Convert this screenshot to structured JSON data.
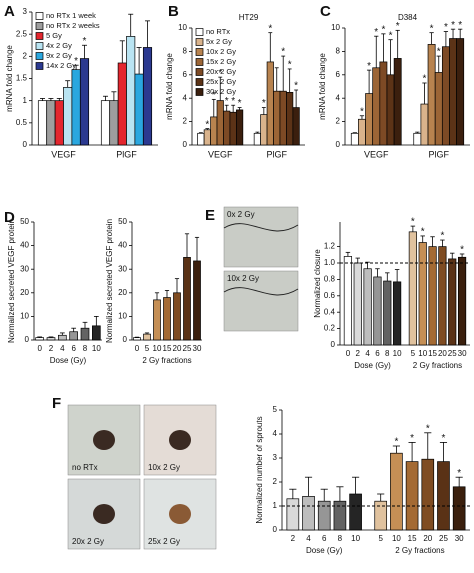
{
  "chart_data": [
    {
      "type": "bar",
      "panel": "A",
      "ylabel": "mRNA fold change",
      "ylim": [
        0,
        3
      ],
      "yticks": [
        0,
        0.5,
        1,
        1.5,
        2,
        2.5,
        3
      ],
      "grid": false,
      "legend": "top-left",
      "significance_mark": "*",
      "categories": [
        "VEGF",
        "PlGF"
      ],
      "series": [
        {
          "name": "no RTx 1 week",
          "color": "#ffffff",
          "values": [
            1.0,
            1.0
          ],
          "errors": [
            0.05,
            0.1
          ],
          "significant": [
            false,
            false
          ]
        },
        {
          "name": "no RTx 2 weeks",
          "color": "#9e9e9e",
          "values": [
            1.0,
            1.0
          ],
          "errors": [
            0.05,
            0.2
          ],
          "significant": [
            false,
            false
          ]
        },
        {
          "name": "5 Gy",
          "color": "#e3262e",
          "values": [
            1.0,
            1.85
          ],
          "errors": [
            0.05,
            0.5
          ],
          "significant": [
            false,
            false
          ]
        },
        {
          "name": "4x 2 Gy",
          "color": "#b9e4f2",
          "values": [
            1.3,
            2.45
          ],
          "errors": [
            0.15,
            0.5
          ],
          "significant": [
            false,
            false
          ]
        },
        {
          "name": "9x 2 Gy",
          "color": "#2aa7df",
          "values": [
            1.7,
            1.6
          ],
          "errors": [
            0.1,
            0.6
          ],
          "significant": [
            true,
            false
          ]
        },
        {
          "name": "14x 2 Gy",
          "color": "#2b3990",
          "values": [
            1.95,
            2.2
          ],
          "errors": [
            0.3,
            0.6
          ],
          "significant": [
            true,
            false
          ]
        }
      ]
    },
    {
      "type": "bar",
      "panel": "B",
      "title": "HT29",
      "ylabel": "mRNA fold change",
      "ylim": [
        0,
        10
      ],
      "yticks": [
        0,
        2,
        4,
        6,
        8,
        10
      ],
      "grid": false,
      "legend": "top-left",
      "significance_mark": "*",
      "categories": [
        "VEGF",
        "PlGF"
      ],
      "series": [
        {
          "name": "no RTx",
          "color": "#ffffff",
          "values": [
            1,
            1
          ],
          "errors": [
            0.05,
            0.1
          ],
          "significant": [
            false,
            false
          ]
        },
        {
          "name": "5x 2 Gy",
          "color": "#d9b38c",
          "values": [
            1.3,
            2.6
          ],
          "errors": [
            0.1,
            0.6
          ],
          "significant": [
            true,
            true
          ]
        },
        {
          "name": "10x 2 Gy",
          "color": "#b8834f",
          "values": [
            2.4,
            7.1
          ],
          "errors": [
            1.5,
            2.5
          ],
          "significant": [
            true,
            true
          ]
        },
        {
          "name": "15x 2 Gy",
          "color": "#9c6536",
          "values": [
            3.8,
            4.6
          ],
          "errors": [
            2,
            2
          ],
          "significant": [
            true,
            false
          ]
        },
        {
          "name": "20x 2 Gy",
          "color": "#7d4a25",
          "values": [
            2.9,
            4.6
          ],
          "errors": [
            0.5,
            3
          ],
          "significant": [
            true,
            true
          ]
        },
        {
          "name": "25x 2 Gy",
          "color": "#5c3317",
          "values": [
            2.8,
            4.5
          ],
          "errors": [
            0.6,
            2
          ],
          "significant": [
            true,
            true
          ]
        },
        {
          "name": "30x 2 Gy",
          "color": "#3b1f0e",
          "values": [
            3.0,
            3.2
          ],
          "errors": [
            0.2,
            1.5
          ],
          "significant": [
            true,
            true
          ]
        }
      ]
    },
    {
      "type": "bar",
      "panel": "C",
      "title": "D384",
      "ylabel": "mRNA fold change",
      "ylim": [
        0,
        10
      ],
      "yticks": [
        0,
        2,
        4,
        6,
        8,
        10
      ],
      "grid": false,
      "significance_mark": "*",
      "categories": [
        "VEGF",
        "PlGF"
      ],
      "series": [
        {
          "color": "#ffffff",
          "values": [
            1,
            1
          ],
          "errors": [
            0.05,
            0.1
          ],
          "significant": [
            false,
            false
          ]
        },
        {
          "color": "#d9b38c",
          "values": [
            2.2,
            3.5
          ],
          "errors": [
            0.3,
            1.8
          ],
          "significant": [
            true,
            true
          ]
        },
        {
          "color": "#b8834f",
          "values": [
            4.4,
            8.6
          ],
          "errors": [
            2,
            1
          ],
          "significant": [
            true,
            true
          ]
        },
        {
          "color": "#9c6536",
          "values": [
            6.6,
            6.2
          ],
          "errors": [
            2.7,
            1.4
          ],
          "significant": [
            true,
            true
          ]
        },
        {
          "color": "#7d4a25",
          "values": [
            7.1,
            8.4
          ],
          "errors": [
            2.4,
            1.3
          ],
          "significant": [
            true,
            true
          ]
        },
        {
          "color": "#5c3317",
          "values": [
            6.0,
            9.1
          ],
          "errors": [
            3,
            0.8
          ],
          "significant": [
            true,
            true
          ]
        },
        {
          "color": "#3b1f0e",
          "values": [
            7.4,
            9.1
          ],
          "errors": [
            2.4,
            0.8
          ],
          "significant": [
            true,
            true
          ]
        }
      ]
    },
    {
      "type": "bar",
      "panel": "D",
      "ylabel": "Normalized secreted VEGF protein",
      "xlabel": "Dose (Gy)",
      "ylim": [
        0,
        50
      ],
      "yticks": [
        0,
        10,
        20,
        30,
        40,
        50
      ],
      "grid": false,
      "categories": [
        "0",
        "2",
        "4",
        "6",
        "8",
        "10"
      ],
      "values": [
        1,
        1,
        2,
        3.5,
        5,
        6
      ],
      "errors": [
        0.3,
        0.3,
        1,
        1.5,
        2.5,
        4
      ],
      "colors": [
        "#ffffff",
        "#d9d9d9",
        "#bdbdbd",
        "#969696",
        "#636363",
        "#252525"
      ]
    },
    {
      "type": "bar",
      "ylabel": "Normalized secreted VEGF protein",
      "xlabel": "2 Gy fractions",
      "ylim": [
        0,
        50
      ],
      "yticks": [
        0,
        10,
        20,
        30,
        40,
        50
      ],
      "grid": false,
      "categories": [
        "0",
        "5",
        "10",
        "15",
        "20",
        "25",
        "30"
      ],
      "values": [
        1,
        2.5,
        17,
        18,
        20,
        35,
        33.5
      ],
      "errors": [
        0.2,
        0.5,
        3,
        3,
        6,
        10,
        10
      ],
      "colors": [
        "#ffffff",
        "#e0c29e",
        "#c58f55",
        "#a46a33",
        "#7f4c22",
        "#5a3216",
        "#3a1f0d"
      ]
    },
    {
      "type": "bar",
      "panel": "E",
      "ylabel": "Normalized closure",
      "ylim": [
        0,
        1.5
      ],
      "yticks": [
        0,
        0.2,
        0.4,
        0.6,
        0.8,
        {
          "value": 1,
          "label": "1.0"
        },
        1.2
      ],
      "grid": false,
      "reference_line": 1,
      "significance_mark": "*",
      "images": [
        "0x 2 Gy",
        "10x 2 Gy"
      ],
      "groups": [
        {
          "label": "Dose (Gy)",
          "categories": [
            "0",
            "2",
            "4",
            "6",
            "8",
            "10"
          ],
          "values": [
            1.08,
            1.0,
            0.93,
            0.83,
            0.78,
            0.77
          ],
          "errors": [
            0.05,
            0.06,
            0.08,
            0.1,
            0.1,
            0.15
          ],
          "colors": [
            "#ffffff",
            "#d9d9d9",
            "#bdbdbd",
            "#969696",
            "#636363",
            "#252525"
          ],
          "significant": [
            false,
            false,
            false,
            false,
            false,
            false
          ]
        },
        {
          "label": "2 Gy fractions",
          "categories": [
            "5",
            "10",
            "15",
            "20",
            "25",
            "30"
          ],
          "values": [
            1.38,
            1.25,
            1.2,
            1.2,
            1.05,
            1.07
          ],
          "errors": [
            0.07,
            0.08,
            0.12,
            0.08,
            0.07,
            0.04
          ],
          "colors": [
            "#e0c29e",
            "#c58f55",
            "#a46a33",
            "#7f4c22",
            "#5a3216",
            "#3a1f0d"
          ],
          "significant": [
            true,
            true,
            false,
            true,
            false,
            true
          ]
        }
      ]
    },
    {
      "type": "bar",
      "panel": "F",
      "ylabel": "Normalized number of sprouts",
      "ylim": [
        0,
        5
      ],
      "yticks": [
        0,
        1,
        2,
        3,
        4,
        5
      ],
      "grid": false,
      "reference_line": 1,
      "significance_mark": "*",
      "images": [
        "no RTx",
        "10x 2 Gy",
        "20x 2 Gy",
        "25x 2 Gy"
      ],
      "groups": [
        {
          "label": "Dose (Gy)",
          "categories": [
            "2",
            "4",
            "6",
            "8",
            "10"
          ],
          "values": [
            1.3,
            1.4,
            1.2,
            1.2,
            1.5
          ],
          "errors": [
            0.4,
            0.8,
            0.5,
            0.6,
            0.7
          ],
          "colors": [
            "#d9d9d9",
            "#bdbdbd",
            "#969696",
            "#636363",
            "#252525"
          ],
          "significant": [
            false,
            false,
            false,
            false,
            false
          ]
        },
        {
          "label": "2 Gy fractions",
          "categories": [
            "5",
            "10",
            "15",
            "20",
            "25",
            "30"
          ],
          "values": [
            1.2,
            3.2,
            2.85,
            2.95,
            2.85,
            1.8
          ],
          "errors": [
            0.3,
            0.3,
            0.8,
            1.1,
            0.8,
            0.4
          ],
          "colors": [
            "#e0c29e",
            "#c58f55",
            "#a46a33",
            "#7f4c22",
            "#5a3216",
            "#3a1f0d"
          ],
          "significant": [
            false,
            true,
            true,
            true,
            true,
            true
          ]
        }
      ]
    }
  ]
}
